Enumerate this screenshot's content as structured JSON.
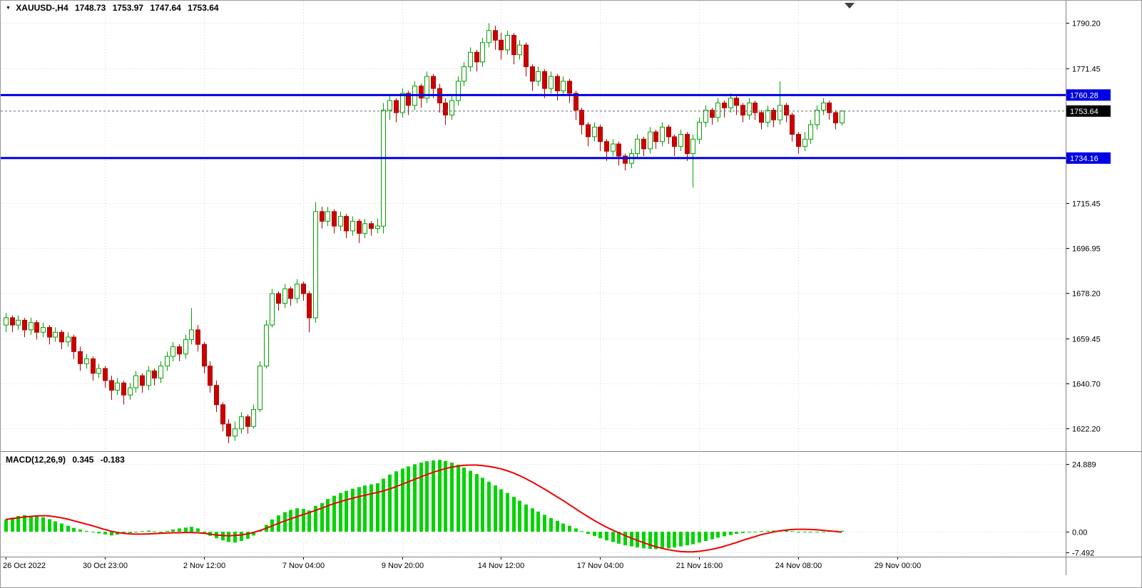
{
  "header": {
    "symbol": "XAUUSD-,H4",
    "open": "1748.73",
    "high": "1753.97",
    "low": "1747.64",
    "close": "1753.64"
  },
  "colors": {
    "bull_fill": "#ffffff",
    "bull_border": "#00A000",
    "bear_fill": "#CC0000",
    "bear_border": "#B20000",
    "hline_blue": "#0000E6",
    "price_tag_bg": "#000000",
    "tag_text": "#ffffff",
    "grid": "#d6d6d6",
    "axis_text": "#000000",
    "macd_histogram": "#00D400",
    "macd_signal": "#F00000",
    "separator": "#808080",
    "current_price_line": "#666666",
    "shift_marker": "#404040"
  },
  "chart_data": {
    "type": "candlestick",
    "symbol": "XAUUSD-",
    "timeframe": "H4",
    "title": "XAUUSD-,H4 1748.73 1753.97 1747.64 1753.64",
    "price_axis": {
      "ticks": [
        "1790.20",
        "1771.45",
        "1715.45",
        "1696.95",
        "1678.20",
        "1659.45",
        "1640.70",
        "1622.20"
      ],
      "visible_range": [
        1613,
        1796
      ]
    },
    "hlines": [
      {
        "price": 1760.28,
        "label": "1760.28"
      },
      {
        "price": 1734.16,
        "label": "1734.16"
      }
    ],
    "price_line": {
      "price": 1753.64,
      "label": "1753.64"
    },
    "x_ticks": [
      {
        "i": 0,
        "label": "26 Oct 2022"
      },
      {
        "i": 16,
        "label": "30 Oct 23:00"
      },
      {
        "i": 32,
        "label": "2 Nov 12:00"
      },
      {
        "i": 48,
        "label": "7 Nov 04:00"
      },
      {
        "i": 64,
        "label": "9 Nov 20:00"
      },
      {
        "i": 80,
        "label": "14 Nov 12:00"
      },
      {
        "i": 96,
        "label": "17 Nov 04:00"
      },
      {
        "i": 112,
        "label": "21 Nov 16:00"
      },
      {
        "i": 128,
        "label": "24 Nov 08:00"
      },
      {
        "i": 144,
        "label": "29 Nov 00:00"
      }
    ],
    "candles": [
      [
        1665,
        1670,
        1662,
        1668
      ],
      [
        1668,
        1669,
        1662,
        1665
      ],
      [
        1665,
        1669,
        1663,
        1667
      ],
      [
        1667,
        1668,
        1660,
        1663
      ],
      [
        1663,
        1668,
        1661,
        1666
      ],
      [
        1666,
        1667,
        1659,
        1662
      ],
      [
        1662,
        1666,
        1660,
        1664
      ],
      [
        1664,
        1665,
        1657,
        1660
      ],
      [
        1660,
        1664,
        1658,
        1662
      ],
      [
        1662,
        1663,
        1655,
        1658
      ],
      [
        1658,
        1662,
        1656,
        1660
      ],
      [
        1660,
        1661,
        1651,
        1654
      ],
      [
        1654,
        1656,
        1646,
        1649
      ],
      [
        1649,
        1653,
        1647,
        1651
      ],
      [
        1651,
        1652,
        1642,
        1645
      ],
      [
        1645,
        1649,
        1643,
        1647
      ],
      [
        1647,
        1648,
        1639,
        1642
      ],
      [
        1642,
        1644,
        1634,
        1638
      ],
      [
        1638,
        1643,
        1636,
        1641
      ],
      [
        1641,
        1642,
        1632,
        1636
      ],
      [
        1636,
        1641,
        1634,
        1639
      ],
      [
        1639,
        1646,
        1637,
        1644
      ],
      [
        1644,
        1645,
        1637,
        1640
      ],
      [
        1640,
        1648,
        1638,
        1646
      ],
      [
        1646,
        1647,
        1640,
        1643
      ],
      [
        1643,
        1650,
        1641,
        1648
      ],
      [
        1648,
        1654,
        1646,
        1652
      ],
      [
        1652,
        1658,
        1650,
        1656
      ],
      [
        1656,
        1657,
        1650,
        1653
      ],
      [
        1653,
        1661,
        1651,
        1659
      ],
      [
        1659,
        1672,
        1657,
        1663
      ],
      [
        1663,
        1665,
        1654,
        1657
      ],
      [
        1657,
        1658,
        1645,
        1648
      ],
      [
        1648,
        1650,
        1637,
        1640
      ],
      [
        1640,
        1642,
        1629,
        1632
      ],
      [
        1632,
        1633,
        1621,
        1624
      ],
      [
        1624,
        1626,
        1616,
        1619
      ],
      [
        1619,
        1625,
        1617,
        1622
      ],
      [
        1622,
        1629,
        1620,
        1627
      ],
      [
        1627,
        1628,
        1620,
        1623
      ],
      [
        1623,
        1632,
        1622,
        1630
      ],
      [
        1630,
        1650,
        1629,
        1648
      ],
      [
        1648,
        1667,
        1647,
        1665
      ],
      [
        1665,
        1680,
        1664,
        1678
      ],
      [
        1678,
        1679,
        1671,
        1674
      ],
      [
        1674,
        1682,
        1672,
        1680
      ],
      [
        1680,
        1681,
        1673,
        1676
      ],
      [
        1676,
        1684,
        1674,
        1682
      ],
      [
        1682,
        1683,
        1675,
        1678
      ],
      [
        1678,
        1679,
        1662,
        1668
      ],
      [
        1668,
        1716,
        1666,
        1712
      ],
      [
        1712,
        1714,
        1705,
        1708
      ],
      [
        1708,
        1714,
        1706,
        1712
      ],
      [
        1712,
        1713,
        1703,
        1706
      ],
      [
        1706,
        1712,
        1704,
        1710
      ],
      [
        1710,
        1711,
        1701,
        1704
      ],
      [
        1704,
        1710,
        1702,
        1708
      ],
      [
        1708,
        1709,
        1699,
        1703
      ],
      [
        1703,
        1709,
        1701,
        1707
      ],
      [
        1707,
        1708,
        1702,
        1705
      ],
      [
        1705,
        1709,
        1703,
        1706
      ],
      [
        1706,
        1757,
        1703,
        1754
      ],
      [
        1754,
        1760,
        1750,
        1758
      ],
      [
        1758,
        1759,
        1749,
        1753
      ],
      [
        1753,
        1763,
        1751,
        1761
      ],
      [
        1761,
        1762,
        1752,
        1756
      ],
      [
        1756,
        1766,
        1754,
        1764
      ],
      [
        1764,
        1765,
        1755,
        1759
      ],
      [
        1759,
        1770,
        1757,
        1768
      ],
      [
        1768,
        1769,
        1759,
        1763
      ],
      [
        1763,
        1765,
        1753,
        1757
      ],
      [
        1757,
        1759,
        1748,
        1752
      ],
      [
        1752,
        1760,
        1750,
        1758
      ],
      [
        1758,
        1768,
        1756,
        1766
      ],
      [
        1766,
        1774,
        1764,
        1772
      ],
      [
        1772,
        1780,
        1770,
        1778
      ],
      [
        1778,
        1779,
        1770,
        1774
      ],
      [
        1774,
        1784,
        1772,
        1782
      ],
      [
        1782,
        1790,
        1780,
        1787
      ],
      [
        1787,
        1789,
        1779,
        1783
      ],
      [
        1783,
        1786,
        1775,
        1779
      ],
      [
        1779,
        1787,
        1777,
        1785
      ],
      [
        1785,
        1786,
        1773,
        1777
      ],
      [
        1777,
        1783,
        1775,
        1781
      ],
      [
        1781,
        1782,
        1768,
        1772
      ],
      [
        1772,
        1773,
        1762,
        1766
      ],
      [
        1766,
        1772,
        1764,
        1770
      ],
      [
        1770,
        1771,
        1759,
        1763
      ],
      [
        1763,
        1770,
        1761,
        1768
      ],
      [
        1768,
        1769,
        1758,
        1762
      ],
      [
        1762,
        1768,
        1760,
        1766
      ],
      [
        1766,
        1767,
        1757,
        1761
      ],
      [
        1761,
        1762,
        1750,
        1754
      ],
      [
        1754,
        1755,
        1744,
        1748
      ],
      [
        1748,
        1749,
        1739,
        1743
      ],
      [
        1743,
        1749,
        1741,
        1747
      ],
      [
        1747,
        1748,
        1737,
        1741
      ],
      [
        1741,
        1742,
        1733,
        1737
      ],
      [
        1737,
        1742,
        1735,
        1740
      ],
      [
        1740,
        1741,
        1731,
        1735
      ],
      [
        1735,
        1736,
        1729,
        1732
      ],
      [
        1732,
        1738,
        1730,
        1736
      ],
      [
        1736,
        1744,
        1734,
        1742
      ],
      [
        1742,
        1743,
        1735,
        1738
      ],
      [
        1738,
        1747,
        1736,
        1745
      ],
      [
        1745,
        1746,
        1738,
        1741
      ],
      [
        1741,
        1749,
        1739,
        1747
      ],
      [
        1747,
        1748,
        1740,
        1743
      ],
      [
        1743,
        1744,
        1735,
        1739
      ],
      [
        1739,
        1746,
        1737,
        1744
      ],
      [
        1744,
        1745,
        1733,
        1736
      ],
      [
        1736,
        1744,
        1722,
        1742
      ],
      [
        1742,
        1751,
        1740,
        1749
      ],
      [
        1749,
        1756,
        1747,
        1754
      ],
      [
        1754,
        1755,
        1748,
        1751
      ],
      [
        1751,
        1759,
        1749,
        1757
      ],
      [
        1757,
        1758,
        1751,
        1755
      ],
      [
        1755,
        1761,
        1753,
        1759
      ],
      [
        1759,
        1760,
        1752,
        1756
      ],
      [
        1756,
        1757,
        1749,
        1752
      ],
      [
        1752,
        1759,
        1750,
        1757
      ],
      [
        1757,
        1758,
        1750,
        1753
      ],
      [
        1753,
        1754,
        1746,
        1749
      ],
      [
        1749,
        1756,
        1747,
        1754
      ],
      [
        1754,
        1755,
        1747,
        1750
      ],
      [
        1750,
        1766,
        1748,
        1756
      ],
      [
        1756,
        1757,
        1749,
        1752
      ],
      [
        1752,
        1753,
        1741,
        1744
      ],
      [
        1744,
        1745,
        1736,
        1739
      ],
      [
        1739,
        1745,
        1737,
        1742
      ],
      [
        1742,
        1750,
        1740,
        1748
      ],
      [
        1748,
        1756,
        1746,
        1754
      ],
      [
        1754,
        1759,
        1752,
        1757
      ],
      [
        1757,
        1758,
        1750,
        1753
      ],
      [
        1753,
        1754,
        1746,
        1748.73
      ],
      [
        1748.73,
        1753.97,
        1747.64,
        1753.64
      ]
    ],
    "macd": {
      "label": "MACD(12,26,9)",
      "main_value": "0.345",
      "signal_value": "-0.183",
      "y_ticks": [
        "24.889",
        "0.00",
        "-7.492"
      ],
      "y_tick_values": [
        24.889,
        0,
        -7.492
      ],
      "visible_range": [
        -9.5,
        29
      ],
      "histogram": [
        4.5,
        5.2,
        5.8,
        6.1,
        5.6,
        6.0,
        5.3,
        4.6,
        3.8,
        3.0,
        2.2,
        1.4,
        0.8,
        0.3,
        -0.2,
        -0.6,
        -1.0,
        -1.4,
        -1.1,
        -0.8,
        -0.5,
        -0.2,
        0.2,
        0.4,
        0.1,
        -0.3,
        0.3,
        0.8,
        1.2,
        1.5,
        1.8,
        1.2,
        -0.6,
        -1.5,
        -2.4,
        -3.2,
        -3.8,
        -4.0,
        -3.4,
        -2.6,
        -1.4,
        0.5,
        2.5,
        4.5,
        6.0,
        7.2,
        8.0,
        8.6,
        8.4,
        7.8,
        9.5,
        10.5,
        12.0,
        13.2,
        14.2,
        15.0,
        15.8,
        16.4,
        17.0,
        17.4,
        17.8,
        19.5,
        21.0,
        22.2,
        23.2,
        24.0,
        24.8,
        25.4,
        25.9,
        26.2,
        26.4,
        26.0,
        25.4,
        24.6,
        23.6,
        22.4,
        21.2,
        19.8,
        18.4,
        17.0,
        15.6,
        14.2,
        12.8,
        11.4,
        10.0,
        8.6,
        7.4,
        6.2,
        5.0,
        4.0,
        3.0,
        2.2,
        1.2,
        0.2,
        -0.8,
        -1.6,
        -2.4,
        -3.2,
        -3.8,
        -4.4,
        -5.0,
        -5.4,
        -5.8,
        -6.1,
        -6.3,
        -6.4,
        -6.3,
        -6.1,
        -5.8,
        -5.4,
        -5.0,
        -4.6,
        -4.0,
        -3.4,
        -2.8,
        -2.2,
        -1.7,
        -1.2,
        -0.8,
        -0.5,
        -0.2,
        0.0,
        0.2,
        0.3,
        0.4,
        0.5,
        0.4,
        0.2,
        0.0,
        -0.2,
        -0.3,
        -0.2,
        0.0,
        0.2,
        0.3,
        0.345
      ],
      "signal": [
        4.5,
        4.8,
        5.1,
        5.4,
        5.6,
        5.8,
        5.9,
        5.8,
        5.5,
        5.1,
        4.6,
        4.0,
        3.4,
        2.8,
        2.2,
        1.5,
        0.8,
        0.2,
        -0.3,
        -0.6,
        -0.8,
        -0.9,
        -0.9,
        -0.8,
        -0.7,
        -0.6,
        -0.5,
        -0.4,
        -0.4,
        -0.3,
        -0.3,
        -0.4,
        -0.6,
        -0.9,
        -1.2,
        -1.4,
        -1.5,
        -1.4,
        -1.2,
        -0.8,
        -0.3,
        0.4,
        1.2,
        2.1,
        3.0,
        3.9,
        4.7,
        5.5,
        6.3,
        7.0,
        7.8,
        8.6,
        9.5,
        10.3,
        11.0,
        11.7,
        12.3,
        12.9,
        13.4,
        13.9,
        14.4,
        15.0,
        15.7,
        16.5,
        17.4,
        18.3,
        19.2,
        20.1,
        21.0,
        21.8,
        22.5,
        23.2,
        23.7,
        24.1,
        24.4,
        24.5,
        24.5,
        24.3,
        24.0,
        23.6,
        23.1,
        22.4,
        21.6,
        20.6,
        19.5,
        18.3,
        17.0,
        15.7,
        14.3,
        12.9,
        11.5,
        10.0,
        8.5,
        7.0,
        5.6,
        4.2,
        2.9,
        1.7,
        0.6,
        -0.4,
        -1.4,
        -2.3,
        -3.2,
        -4.0,
        -4.8,
        -5.5,
        -6.1,
        -6.6,
        -7.0,
        -7.3,
        -7.4,
        -7.4,
        -7.2,
        -6.9,
        -6.5,
        -6.0,
        -5.4,
        -4.7,
        -4.0,
        -3.2,
        -2.5,
        -1.8,
        -1.1,
        -0.6,
        -0.1,
        0.3,
        0.6,
        0.8,
        0.9,
        0.9,
        0.8,
        0.7,
        0.5,
        0.3,
        0.1,
        -0.18
      ]
    }
  }
}
